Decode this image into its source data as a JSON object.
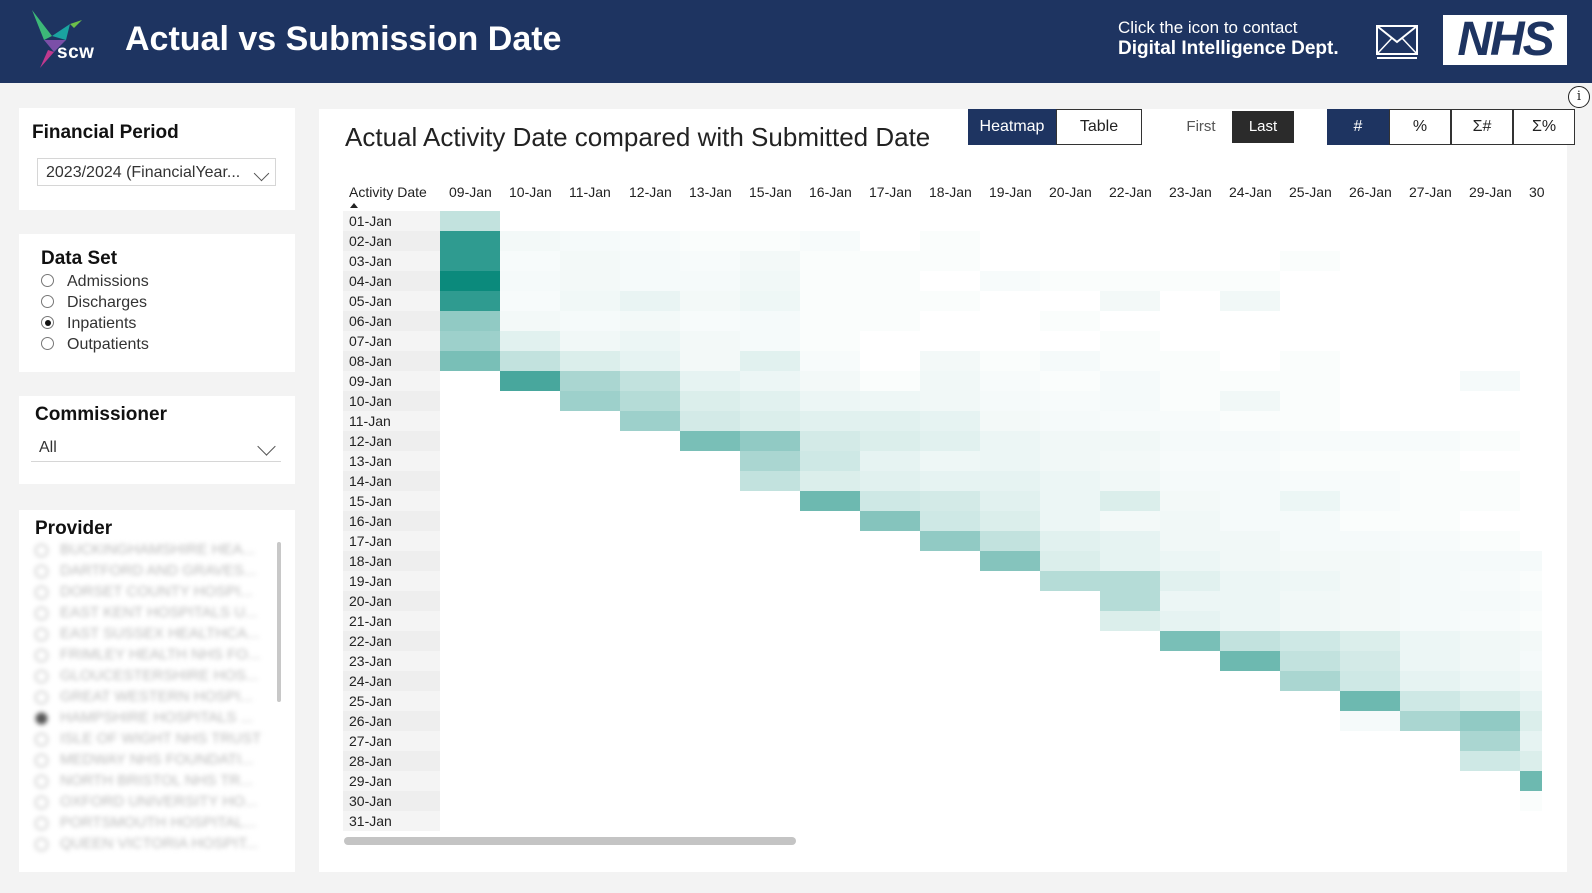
{
  "header": {
    "logo_text": "scw",
    "title": "Actual vs Submission Date",
    "contact_line1": "Click the icon to contact",
    "contact_line2": "Digital Intelligence Dept.",
    "nhs_logo_text": "NHS",
    "background_color": "#1e3461"
  },
  "filters": {
    "financial_period": {
      "title": "Financial Period",
      "value": "2023/2024 (FinancialYear..."
    },
    "data_set": {
      "title": "Data Set",
      "options": [
        {
          "label": "Admissions",
          "selected": false
        },
        {
          "label": "Discharges",
          "selected": false
        },
        {
          "label": "Inpatients",
          "selected": true
        },
        {
          "label": "Outpatients",
          "selected": false
        }
      ]
    },
    "commissioner": {
      "title": "Commissioner",
      "value": "All"
    },
    "provider": {
      "title": "Provider",
      "items": [
        "BUCKINGHAMSHIRE HEA...",
        "DARTFORD AND GRAVES...",
        "DORSET COUNTY HOSPI...",
        "EAST KENT HOSPITALS U...",
        "EAST SUSSEX HEALTHCA...",
        "FRIMLEY HEALTH NHS FO...",
        "GLOUCESTERSHIRE HOS...",
        "GREAT WESTERN HOSPI...",
        "HAMPSHIRE HOSPITALS ...",
        "ISLE OF WIGHT NHS TRUST",
        "MEDWAY NHS FOUNDATI...",
        "NORTH BRISTOL NHS TR...",
        "OXFORD UNIVERSITY HO...",
        "PORTSMOUTH HOSPITAL...",
        "QUEEN VICTORIA HOSPIT..."
      ],
      "selected_index": 8
    }
  },
  "visual": {
    "title": "Actual Activity Date compared with Submitted Date",
    "view_buttons": {
      "heatmap": "Heatmap",
      "table": "Table",
      "active": "heatmap"
    },
    "position_buttons": {
      "first": "First",
      "last": "Last",
      "active": "last"
    },
    "measure_buttons": {
      "count": "#",
      "percent": "%",
      "cum_count": "Σ#",
      "cum_percent": "Σ%",
      "active": "count"
    },
    "info_icon": "i",
    "heat_color": "#0b8a7c"
  },
  "chart_data": {
    "type": "heatmap",
    "corner_label": "Activity Date",
    "x_label": "Submitted Date",
    "y_label": "Activity Date",
    "columns": [
      "09-Jan",
      "10-Jan",
      "11-Jan",
      "12-Jan",
      "13-Jan",
      "15-Jan",
      "16-Jan",
      "17-Jan",
      "18-Jan",
      "19-Jan",
      "20-Jan",
      "22-Jan",
      "23-Jan",
      "24-Jan",
      "25-Jan",
      "26-Jan",
      "27-Jan",
      "29-Jan",
      "30"
    ],
    "rows": [
      "01-Jan",
      "02-Jan",
      "03-Jan",
      "04-Jan",
      "05-Jan",
      "06-Jan",
      "07-Jan",
      "08-Jan",
      "09-Jan",
      "10-Jan",
      "11-Jan",
      "12-Jan",
      "13-Jan",
      "14-Jan",
      "15-Jan",
      "16-Jan",
      "17-Jan",
      "18-Jan",
      "19-Jan",
      "20-Jan",
      "21-Jan",
      "22-Jan",
      "23-Jan",
      "24-Jan",
      "25-Jan",
      "26-Jan",
      "27-Jan",
      "28-Jan",
      "29-Jan",
      "30-Jan",
      "31-Jan"
    ],
    "intensity": [
      [
        0.25,
        0,
        0,
        0,
        0,
        0,
        0,
        0,
        0,
        0,
        0,
        0,
        0,
        0,
        0,
        0,
        0,
        0,
        0
      ],
      [
        0.85,
        0.05,
        0.04,
        0.03,
        0.02,
        0.02,
        0.03,
        0,
        0.02,
        0,
        0,
        0,
        0,
        0,
        0,
        0,
        0,
        0,
        0
      ],
      [
        0.85,
        0.03,
        0.05,
        0.04,
        0.03,
        0.05,
        0.02,
        0.02,
        0.02,
        0,
        0,
        0,
        0,
        0,
        0.02,
        0,
        0,
        0,
        0
      ],
      [
        1.0,
        0.04,
        0.05,
        0.04,
        0.04,
        0.06,
        0.02,
        0.02,
        0,
        0.03,
        0.02,
        0.02,
        0.02,
        0.02,
        0,
        0,
        0,
        0,
        0
      ],
      [
        0.85,
        0.03,
        0.06,
        0.09,
        0.05,
        0.07,
        0.02,
        0.02,
        0.02,
        0,
        0,
        0.05,
        0,
        0.06,
        0,
        0,
        0,
        0,
        0
      ],
      [
        0.45,
        0.05,
        0.04,
        0.05,
        0.03,
        0.04,
        0.02,
        0.02,
        0,
        0,
        0.02,
        0,
        0,
        0,
        0,
        0,
        0,
        0,
        0
      ],
      [
        0.4,
        0.12,
        0.06,
        0.08,
        0.05,
        0.04,
        0.02,
        0,
        0,
        0,
        0,
        0.02,
        0,
        0,
        0,
        0,
        0,
        0,
        0
      ],
      [
        0.55,
        0.25,
        0.15,
        0.1,
        0.05,
        0.12,
        0.03,
        0,
        0.05,
        0.02,
        0.04,
        0.02,
        0.02,
        0,
        0.02,
        0,
        0,
        0,
        0
      ],
      [
        0,
        0.75,
        0.35,
        0.25,
        0.1,
        0.08,
        0.05,
        0.02,
        0.06,
        0.03,
        0.02,
        0.04,
        0.02,
        0.02,
        0.02,
        0,
        0,
        0.04,
        0
      ],
      [
        0,
        0,
        0.4,
        0.3,
        0.15,
        0.12,
        0.08,
        0.07,
        0.06,
        0.04,
        0.03,
        0.04,
        0.02,
        0.06,
        0.02,
        0,
        0,
        0,
        0
      ],
      [
        0,
        0,
        0,
        0.4,
        0.18,
        0.15,
        0.12,
        0.12,
        0.1,
        0.05,
        0.04,
        0.03,
        0.03,
        0.02,
        0.02,
        0,
        0,
        0,
        0
      ],
      [
        0,
        0,
        0,
        0,
        0.55,
        0.45,
        0.18,
        0.15,
        0.12,
        0.08,
        0.06,
        0.06,
        0.04,
        0.04,
        0.03,
        0.03,
        0.03,
        0.02,
        0
      ],
      [
        0,
        0,
        0,
        0,
        0,
        0.35,
        0.2,
        0.1,
        0.07,
        0.08,
        0.06,
        0.05,
        0.03,
        0.03,
        0.02,
        0.02,
        0.02,
        0,
        0
      ],
      [
        0,
        0,
        0,
        0,
        0,
        0.25,
        0.15,
        0.12,
        0.1,
        0.1,
        0.08,
        0.06,
        0.04,
        0.04,
        0.03,
        0.03,
        0.02,
        0.02,
        0
      ],
      [
        0,
        0,
        0,
        0,
        0,
        0,
        0.6,
        0.2,
        0.18,
        0.12,
        0.08,
        0.15,
        0.05,
        0.04,
        0.08,
        0.03,
        0.02,
        0.02,
        0
      ],
      [
        0,
        0,
        0,
        0,
        0,
        0,
        0,
        0.5,
        0.2,
        0.15,
        0.08,
        0.05,
        0.06,
        0.04,
        0.04,
        0.02,
        0.02,
        0,
        0
      ],
      [
        0,
        0,
        0,
        0,
        0,
        0,
        0,
        0,
        0.45,
        0.25,
        0.12,
        0.1,
        0.06,
        0.06,
        0.04,
        0.04,
        0.03,
        0.02,
        0
      ],
      [
        0,
        0,
        0,
        0,
        0,
        0,
        0,
        0,
        0,
        0.5,
        0.15,
        0.1,
        0.08,
        0.06,
        0.05,
        0.05,
        0.04,
        0.04,
        0.04
      ],
      [
        0,
        0,
        0,
        0,
        0,
        0,
        0,
        0,
        0,
        0,
        0.3,
        0.3,
        0.12,
        0.08,
        0.07,
        0.05,
        0.04,
        0.03,
        0.02
      ],
      [
        0,
        0,
        0,
        0,
        0,
        0,
        0,
        0,
        0,
        0,
        0,
        0.3,
        0.08,
        0.08,
        0.06,
        0.05,
        0.04,
        0.04,
        0.03
      ],
      [
        0,
        0,
        0,
        0,
        0,
        0,
        0,
        0,
        0,
        0,
        0,
        0.15,
        0.1,
        0.08,
        0.06,
        0.05,
        0.04,
        0.03,
        0.02
      ],
      [
        0,
        0,
        0,
        0,
        0,
        0,
        0,
        0,
        0,
        0,
        0,
        0,
        0.55,
        0.25,
        0.2,
        0.15,
        0.08,
        0.06,
        0.05
      ],
      [
        0,
        0,
        0,
        0,
        0,
        0,
        0,
        0,
        0,
        0,
        0,
        0,
        0,
        0.6,
        0.25,
        0.18,
        0.08,
        0.06,
        0.04
      ],
      [
        0,
        0,
        0,
        0,
        0,
        0,
        0,
        0,
        0,
        0,
        0,
        0,
        0,
        0,
        0.35,
        0.2,
        0.1,
        0.08,
        0.06
      ],
      [
        0,
        0,
        0,
        0,
        0,
        0,
        0,
        0,
        0,
        0,
        0,
        0,
        0,
        0,
        0,
        0.6,
        0.2,
        0.15,
        0.1
      ],
      [
        0,
        0,
        0,
        0,
        0,
        0,
        0,
        0,
        0,
        0,
        0,
        0,
        0,
        0,
        0,
        0.04,
        0.35,
        0.45,
        0.15
      ],
      [
        0,
        0,
        0,
        0,
        0,
        0,
        0,
        0,
        0,
        0,
        0,
        0,
        0,
        0,
        0,
        0,
        0,
        0.35,
        0.1
      ],
      [
        0,
        0,
        0,
        0,
        0,
        0,
        0,
        0,
        0,
        0,
        0,
        0,
        0,
        0,
        0,
        0,
        0,
        0.2,
        0.15
      ],
      [
        0,
        0,
        0,
        0,
        0,
        0,
        0,
        0,
        0,
        0,
        0,
        0,
        0,
        0,
        0,
        0,
        0,
        0,
        0.6
      ],
      [
        0,
        0,
        0,
        0,
        0,
        0,
        0,
        0,
        0,
        0,
        0,
        0,
        0,
        0,
        0,
        0,
        0,
        0,
        0.02
      ],
      [
        0,
        0,
        0,
        0,
        0,
        0,
        0,
        0,
        0,
        0,
        0,
        0,
        0,
        0,
        0,
        0,
        0,
        0,
        0
      ]
    ]
  }
}
